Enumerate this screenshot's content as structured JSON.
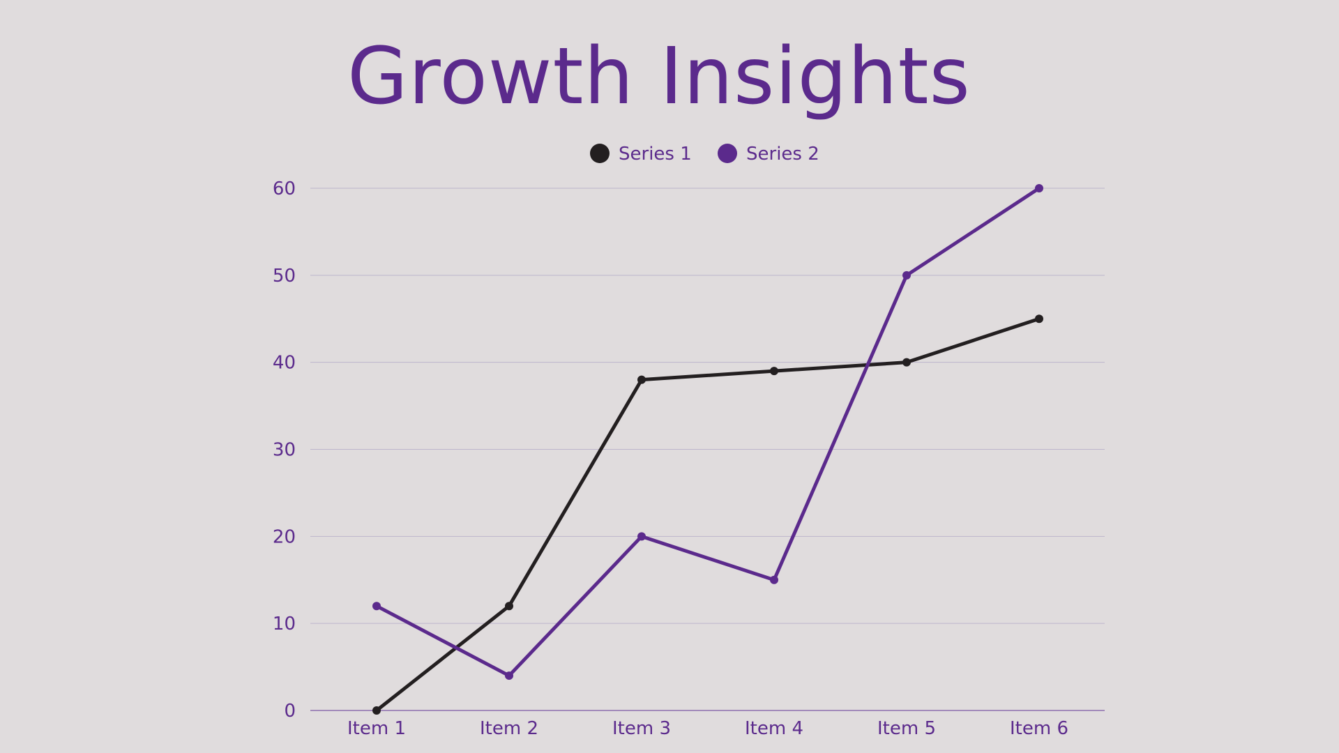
{
  "chart_data": {
    "type": "line",
    "title": "Growth Insights",
    "categories": [
      "Item 1",
      "Item 2",
      "Item 3",
      "Item 4",
      "Item 5",
      "Item 6"
    ],
    "series": [
      {
        "name": "Series 1",
        "values": [
          0,
          12,
          38,
          39,
          40,
          45
        ],
        "color": "#231f20"
      },
      {
        "name": "Series 2",
        "values": [
          12,
          4,
          20,
          15,
          50,
          60
        ],
        "color": "#5b2a8c"
      }
    ],
    "ylim": [
      0,
      60
    ],
    "yticks": [
      0,
      10,
      20,
      30,
      40,
      50,
      60
    ],
    "grid": true,
    "legend_position": "top",
    "colors": {
      "background": "#e0dcdd",
      "accent": "#5b2a8c",
      "gridline": "#bdb5cc"
    }
  }
}
